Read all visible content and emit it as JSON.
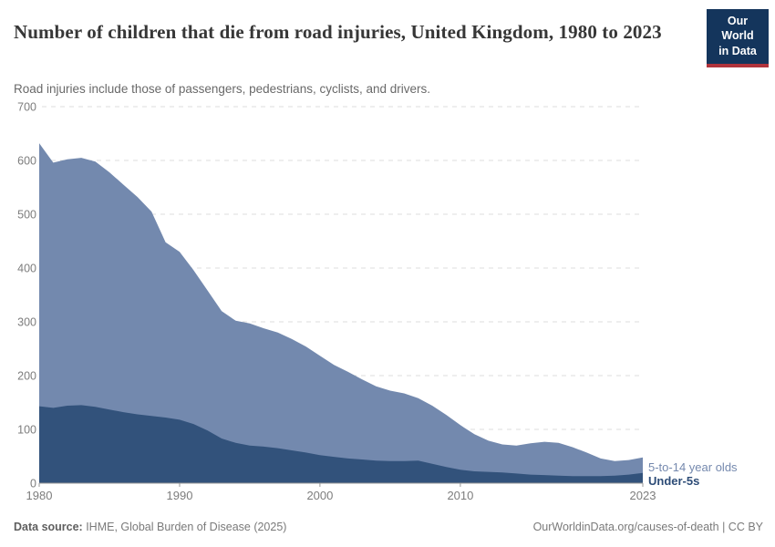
{
  "header": {
    "title": "Number of children that die from road injuries, United Kingdom, 1980 to 2023",
    "subtitle": "Road injuries include those of passengers, pedestrians, cyclists, and drivers.",
    "logo": {
      "line1": "Our World",
      "line2": "in Data",
      "bg_color": "#14355c",
      "accent_color": "#b0333c"
    }
  },
  "chart_data": {
    "type": "area",
    "stacked": true,
    "title": "Number of children that die from road injuries, United Kingdom, 1980 to 2023",
    "subtitle": "Road injuries include those of passengers, pedestrians, cyclists, and drivers.",
    "xlabel": "",
    "ylabel": "",
    "xlim": [
      1980,
      2023
    ],
    "ylim": [
      0,
      700
    ],
    "xticks": [
      1980,
      1990,
      2000,
      2010,
      2023
    ],
    "yticks": [
      0,
      100,
      200,
      300,
      400,
      500,
      600,
      700
    ],
    "grid": "horizontal-dashed",
    "legend_position": "right-of-series-end",
    "years": [
      1980,
      1981,
      1982,
      1983,
      1984,
      1985,
      1986,
      1987,
      1988,
      1989,
      1990,
      1991,
      1992,
      1993,
      1994,
      1995,
      1996,
      1997,
      1998,
      1999,
      2000,
      2001,
      2002,
      2003,
      2004,
      2005,
      2006,
      2007,
      2008,
      2009,
      2010,
      2011,
      2012,
      2013,
      2014,
      2015,
      2016,
      2017,
      2018,
      2019,
      2020,
      2021,
      2022,
      2023
    ],
    "series": [
      {
        "name": "Under-5s",
        "color": "#32527b",
        "label_color": "#2d4c77",
        "values": [
          143,
          140,
          144,
          145,
          142,
          137,
          132,
          128,
          125,
          122,
          118,
          110,
          98,
          83,
          75,
          70,
          68,
          65,
          61,
          57,
          52,
          49,
          46,
          44,
          42,
          41,
          41,
          42,
          36,
          30,
          25,
          22,
          21,
          20,
          18,
          16,
          15,
          14,
          13,
          13,
          13,
          14,
          16,
          19
        ]
      },
      {
        "name": "5-to-14 year olds",
        "color": "#7389ae",
        "label_color": "#7589ae",
        "values": [
          489,
          456,
          458,
          460,
          456,
          441,
          423,
          404,
          380,
          326,
          312,
          286,
          260,
          237,
          227,
          227,
          220,
          215,
          207,
          197,
          185,
          171,
          161,
          149,
          138,
          131,
          126,
          116,
          108,
          97,
          83,
          69,
          58,
          52,
          52,
          58,
          62,
          61,
          54,
          44,
          33,
          27,
          27,
          29
        ]
      }
    ],
    "axis_color": "#999999",
    "gridline_color": "#dcdcdc",
    "tick_label_color": "#7d7d7d"
  },
  "footer": {
    "source_label": "Data source:",
    "source_value": " IHME, Global Burden of Disease (2025)",
    "credit": "OurWorldinData.org/causes-of-death | CC BY"
  }
}
